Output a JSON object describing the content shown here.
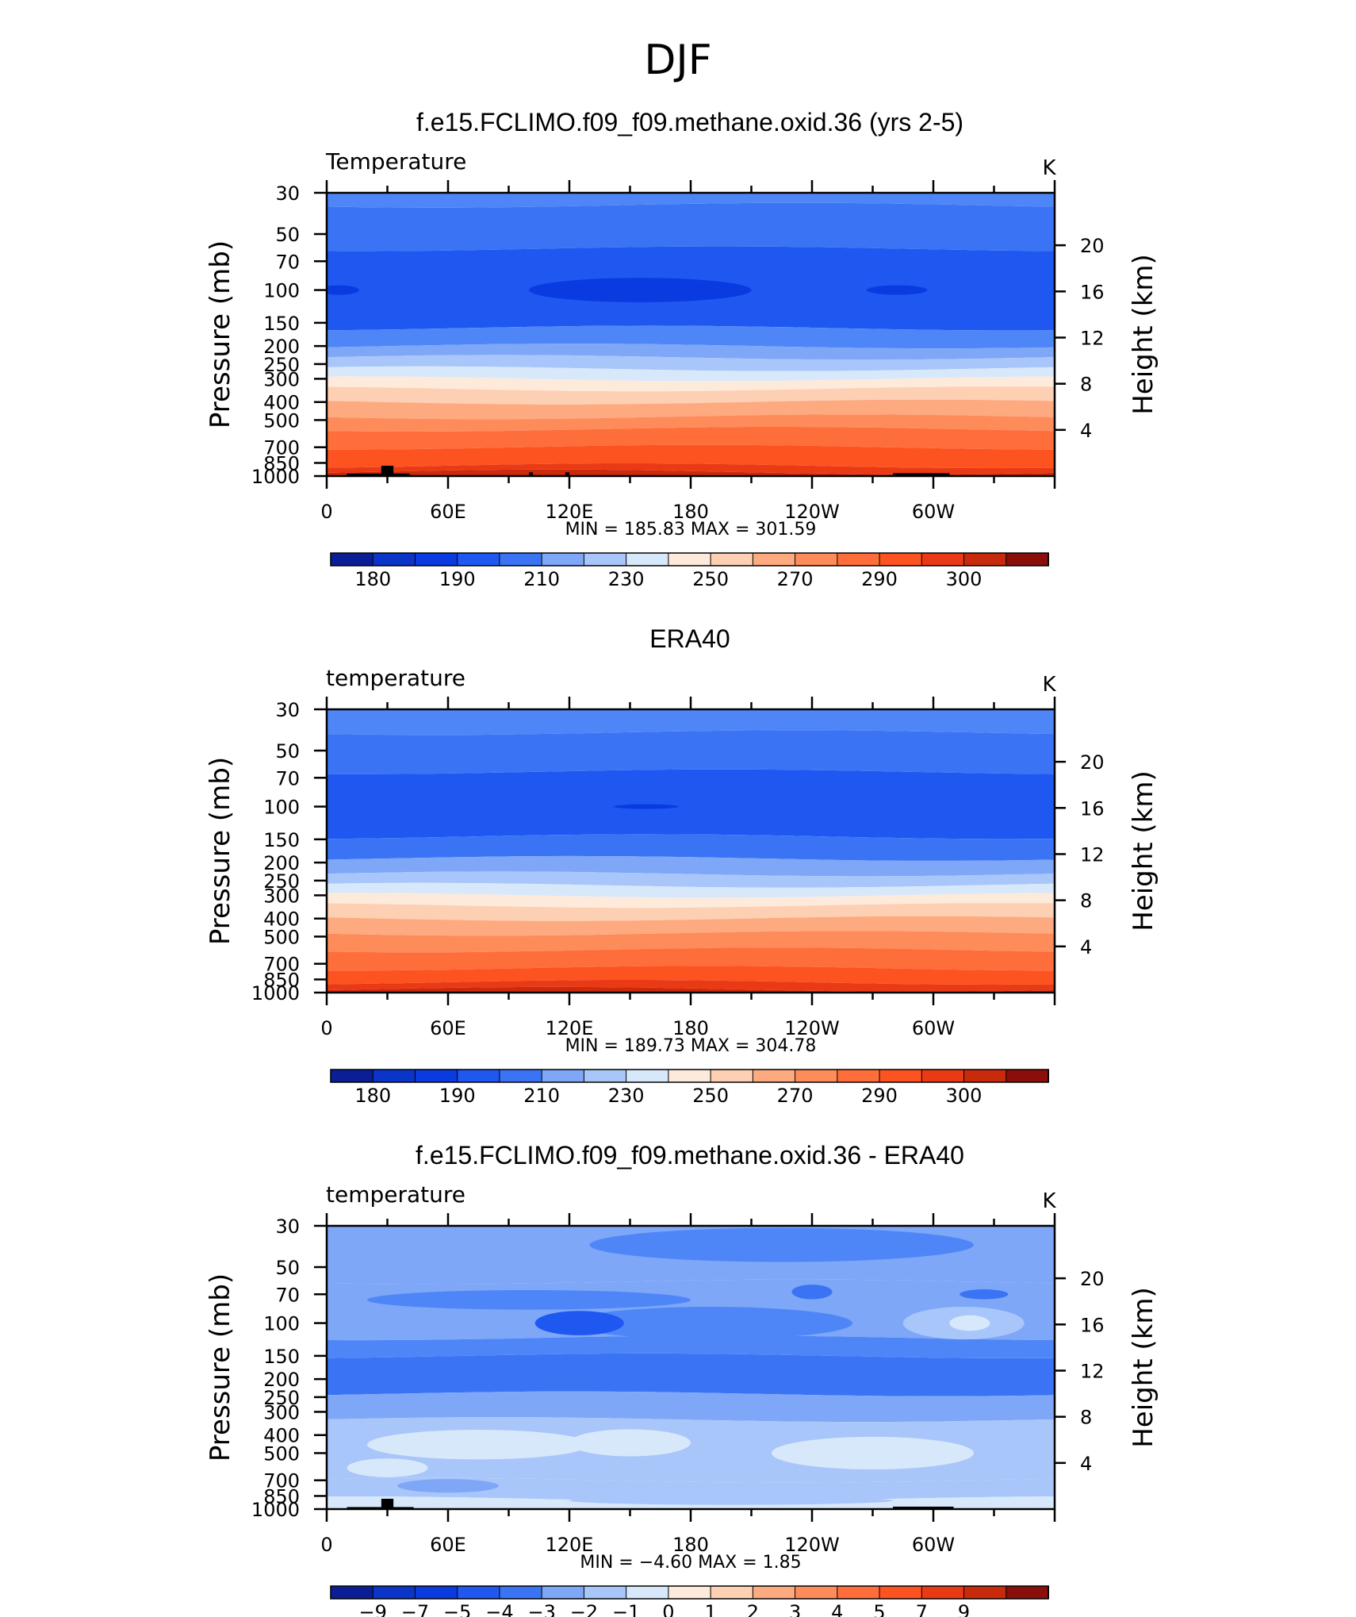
{
  "page_title": "DJF",
  "chart_data": [
    {
      "type": "heatmap",
      "title": "f.e15.FCLIMO.f09_f09.methane.oxid.36 (yrs 2-5)",
      "left_label": "Temperature",
      "units": "K",
      "ylabel": "Pressure (mb)",
      "ylabel_right": "Height (km)",
      "xticks": [
        "0",
        "60E",
        "120E",
        "180",
        "120W",
        "60W"
      ],
      "yticks": [
        "30",
        "50",
        "70",
        "100",
        "150",
        "200",
        "250",
        "300",
        "400",
        "500",
        "700",
        "850",
        "1000"
      ],
      "yticks_right": [
        "20",
        "16",
        "12",
        "8",
        "4"
      ],
      "stats": "MIN = 185.83 MAX = 301.59",
      "colorbar_labels": [
        "180",
        "190",
        "210",
        "230",
        "250",
        "270",
        "290",
        "300"
      ],
      "bands": [
        [
          30,
          35,
          "#4f86f7"
        ],
        [
          35,
          60,
          "#3a74f5"
        ],
        [
          60,
          160,
          "#1f57f1"
        ],
        [
          160,
          200,
          "#4f86f7"
        ],
        [
          200,
          230,
          "#7ea7f7"
        ],
        [
          230,
          265,
          "#a9c6fa"
        ],
        [
          265,
          300,
          "#d8e8fb"
        ],
        [
          300,
          340,
          "#fdeadb"
        ],
        [
          340,
          400,
          "#fdd0b3"
        ],
        [
          400,
          480,
          "#fdaa80"
        ],
        [
          480,
          560,
          "#fe8c5b"
        ],
        [
          560,
          700,
          "#fe6e3b"
        ],
        [
          700,
          880,
          "#fd5320"
        ],
        [
          880,
          950,
          "#ea3a15"
        ],
        [
          950,
          1000,
          "#cc2a0c"
        ]
      ],
      "blobs": [
        {
          "lon": 155,
          "p": 100,
          "rlon": 55,
          "rp": 14,
          "color": "#0a3be0"
        },
        {
          "lon": 6,
          "p": 100,
          "rlon": 10,
          "rp": 4,
          "color": "#0a3be0"
        },
        {
          "lon": 282,
          "p": 100,
          "rlon": 15,
          "rp": 4,
          "color": "#0a3be0"
        }
      ],
      "topography": [
        {
          "lon0": 10,
          "lon1": 41,
          "p": 970
        },
        {
          "lon0": 27,
          "lon1": 33,
          "p": 880
        },
        {
          "lon0": 100,
          "lon1": 102,
          "p": 955
        },
        {
          "lon0": 118,
          "lon1": 120,
          "p": 955
        },
        {
          "lon0": 280,
          "lon1": 308,
          "p": 965
        }
      ]
    },
    {
      "type": "heatmap",
      "title": "ERA40",
      "left_label": "temperature",
      "units": "K",
      "ylabel": "Pressure (mb)",
      "ylabel_right": "Height (km)",
      "xticks": [
        "0",
        "60E",
        "120E",
        "180",
        "120W",
        "60W"
      ],
      "yticks": [
        "30",
        "50",
        "70",
        "100",
        "150",
        "200",
        "250",
        "300",
        "400",
        "500",
        "700",
        "850",
        "1000"
      ],
      "yticks_right": [
        "20",
        "16",
        "12",
        "8",
        "4"
      ],
      "stats": "MIN = 189.73 MAX = 304.78",
      "colorbar_labels": [
        "180",
        "190",
        "210",
        "230",
        "250",
        "270",
        "290",
        "300"
      ],
      "bands": [
        [
          30,
          40,
          "#4f86f7"
        ],
        [
          40,
          65,
          "#3a74f5"
        ],
        [
          65,
          145,
          "#1f57f1"
        ],
        [
          145,
          190,
          "#3a74f5"
        ],
        [
          190,
          230,
          "#7ea7f7"
        ],
        [
          230,
          265,
          "#a9c6fa"
        ],
        [
          265,
          300,
          "#d8e8fb"
        ],
        [
          300,
          340,
          "#fdeadb"
        ],
        [
          340,
          400,
          "#fdd0b3"
        ],
        [
          400,
          480,
          "#fdaa80"
        ],
        [
          480,
          590,
          "#fe8c5b"
        ],
        [
          590,
          740,
          "#fe6e3b"
        ],
        [
          740,
          880,
          "#fd5320"
        ],
        [
          880,
          960,
          "#ea3a15"
        ],
        [
          960,
          1000,
          "#cc2a0c"
        ]
      ],
      "blobs": [
        {
          "lon": 158,
          "p": 100,
          "rlon": 16,
          "rp": 1,
          "color": "#0a3be0"
        }
      ],
      "topography": []
    },
    {
      "type": "heatmap",
      "title": "f.e15.FCLIMO.f09_f09.methane.oxid.36 - ERA40",
      "left_label": "temperature",
      "units": "K",
      "ylabel": "Pressure (mb)",
      "ylabel_right": "Height (km)",
      "xticks": [
        "0",
        "60E",
        "120E",
        "180",
        "120W",
        "60W"
      ],
      "yticks": [
        "30",
        "50",
        "70",
        "100",
        "150",
        "200",
        "250",
        "300",
        "400",
        "500",
        "700",
        "850",
        "1000"
      ],
      "yticks_right": [
        "20",
        "16",
        "12",
        "8",
        "4"
      ],
      "stats": "MIN = −4.60 MAX = 1.85",
      "colorbar_labels": [
        "−9",
        "−7",
        "−5",
        "−4",
        "−3",
        "−2",
        "−1",
        "0",
        "1",
        "2",
        "3",
        "4",
        "5",
        "7",
        "9"
      ],
      "bands": [
        [
          30,
          60,
          "#7ea7f7"
        ],
        [
          60,
          120,
          "#7ea7f7"
        ],
        [
          120,
          150,
          "#4f86f7"
        ],
        [
          150,
          240,
          "#3a74f5"
        ],
        [
          240,
          330,
          "#7ea7f7"
        ],
        [
          330,
          700,
          "#a9c6fa"
        ],
        [
          700,
          880,
          "#a9c6fa"
        ],
        [
          880,
          1000,
          "#d8e8fb"
        ]
      ],
      "blobs": [
        {
          "lon": 225,
          "p": 38,
          "rlon": 95,
          "rp": 8,
          "color": "#4f86f7"
        },
        {
          "lon": 100,
          "p": 75,
          "rlon": 80,
          "rp": 8,
          "color": "#4f86f7"
        },
        {
          "lon": 190,
          "p": 100,
          "rlon": 70,
          "rp": 20,
          "color": "#4f86f7"
        },
        {
          "lon": 125,
          "p": 100,
          "rlon": 22,
          "rp": 14,
          "color": "#1f57f1"
        },
        {
          "lon": 240,
          "p": 68,
          "rlon": 10,
          "rp": 5,
          "color": "#3a74f5"
        },
        {
          "lon": 325,
          "p": 70,
          "rlon": 12,
          "rp": 3,
          "color": "#3a74f5"
        },
        {
          "lon": 315,
          "p": 100,
          "rlon": 30,
          "rp": 20,
          "color": "#a9c6fa"
        },
        {
          "lon": 318,
          "p": 100,
          "rlon": 10,
          "rp": 8,
          "color": "#d8e8fb"
        },
        {
          "lon": 75,
          "p": 450,
          "rlon": 55,
          "rp": 80,
          "color": "#d8e8fb"
        },
        {
          "lon": 270,
          "p": 500,
          "rlon": 50,
          "rp": 100,
          "color": "#d8e8fb"
        },
        {
          "lon": 150,
          "p": 440,
          "rlon": 30,
          "rp": 70,
          "color": "#d8e8fb"
        },
        {
          "lon": 30,
          "p": 600,
          "rlon": 20,
          "rp": 60,
          "color": "#d8e8fb"
        },
        {
          "lon": 60,
          "p": 750,
          "rlon": 25,
          "rp": 50,
          "color": "#7ea7f7"
        },
        {
          "lon": 200,
          "p": 900,
          "rlon": 80,
          "rp": 30,
          "color": "#a9c6fa"
        }
      ],
      "topography": [
        {
          "lon0": 10,
          "lon1": 43,
          "p": 975
        },
        {
          "lon0": 27,
          "lon1": 33,
          "p": 880
        },
        {
          "lon0": 280,
          "lon1": 310,
          "p": 970
        }
      ]
    }
  ],
  "colorbar_colors": [
    "#0a1e96",
    "#0a35c8",
    "#0a3be0",
    "#1f57f1",
    "#3a74f5",
    "#7ea7f7",
    "#a9c6fa",
    "#d8e8fb",
    "#fdeadb",
    "#fdd0b3",
    "#fdaa80",
    "#fe8c5b",
    "#fe6e3b",
    "#fd5320",
    "#ea3a15",
    "#c82a0c",
    "#8a0f0a"
  ]
}
